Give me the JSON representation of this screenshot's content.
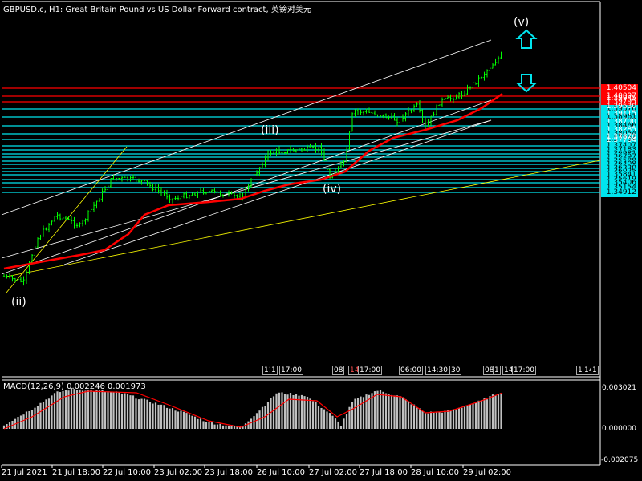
{
  "header": {
    "symbol": "GBPUSD.c",
    "timeframe": "H1:",
    "description": "Great Britain Pound vs US Dollar Forward contract",
    "provider": "英镑对美元"
  },
  "macd": {
    "title": "MACD(12,26,9) 0.002246 0.001973",
    "axis_labels": [
      "0.003021",
      "0.000000",
      "-0.002075"
    ]
  },
  "price_axis": {
    "plain_labels": [
      "1.39945",
      "1.39530",
      "1.39115",
      "1.38700",
      "1.38285",
      "1.37870",
      "1.37704"
    ],
    "highlighted_labels": [
      {
        "text": "1.40504",
        "type": "red"
      },
      {
        "text": "1.40097",
        "type": "red"
      },
      {
        "text": "1.39795",
        "type": "red"
      },
      {
        "text": "1.39376",
        "type": "cyan"
      },
      {
        "text": "1.38961",
        "type": "cyan"
      },
      {
        "text": "1.38466",
        "type": "cyan"
      },
      {
        "text": "1.38054",
        "type": "cyan"
      },
      {
        "text": "1.37734",
        "type": "cyan"
      },
      {
        "text": "1.37407",
        "type": "cyan"
      },
      {
        "text": "1.37183",
        "type": "cyan"
      },
      {
        "text": "1.36981",
        "type": "cyan"
      },
      {
        "text": "1.36797",
        "type": "cyan"
      },
      {
        "text": "1.36588",
        "type": "cyan"
      },
      {
        "text": "1.36408",
        "type": "cyan"
      },
      {
        "text": "1.36220",
        "type": "cyan"
      },
      {
        "text": "1.36025",
        "type": "cyan"
      },
      {
        "text": "1.35841",
        "type": "cyan"
      },
      {
        "text": "1.35619",
        "type": "cyan"
      },
      {
        "text": "1.35406",
        "type": "cyan"
      },
      {
        "text": "1.35154",
        "type": "cyan"
      },
      {
        "text": "1.34912",
        "type": "cyan"
      }
    ]
  },
  "time_axis": [
    "21 Jul 2021",
    "21 Jul 18:00",
    "22 Jul 10:00",
    "23 Jul 02:00",
    "23 Jul 18:00",
    "26 Jul 10:00",
    "27 Jul 02:00",
    "27 Jul 18:00",
    "28 Jul 10:00",
    "29 Jul 02:00"
  ],
  "wave_labels": [
    "(ii)",
    "(iii)",
    "(iv)",
    "(v)"
  ],
  "event_labels": [
    "11",
    "1",
    "17:00",
    "08",
    "14",
    "17:00",
    "06:00",
    "14:30",
    "30",
    "08",
    "1",
    "14",
    "17:00",
    "1",
    "14",
    "1"
  ],
  "colors": {
    "background": "#000000",
    "candle": "#00ff00",
    "support_line": "#00e5ee",
    "resistance_line": "#ff0000",
    "moving_average": "#ff0000",
    "channel": "#ffffff",
    "trendline": "#ffff00",
    "macd_histogram": "#c0c0c0",
    "macd_signal": "#ff0000"
  },
  "arrows": [
    "up-arrow-icon",
    "down-arrow-icon"
  ]
}
